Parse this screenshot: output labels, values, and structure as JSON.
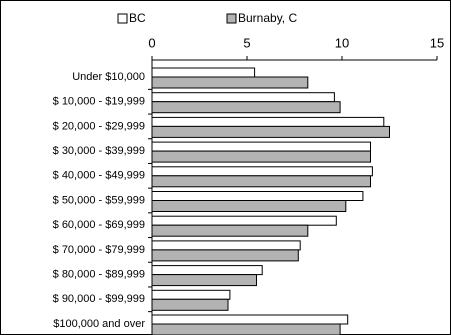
{
  "chart_data": {
    "type": "hbar",
    "categories": [
      "Under $10,000",
      "$ 10,000 - $19,999",
      "$ 20,000 - $29,999",
      "$ 30,000 - $39,999",
      "$ 40,000 - $49,999",
      "$ 50,000 - $59,999",
      "$ 60,000 - $69,999",
      "$ 70,000 - $79,999",
      "$ 80,000 - $89,999",
      "$ 90,000 - $99,999",
      "$100,000 and over"
    ],
    "series": [
      {
        "name": "BC",
        "color": "#ffffff",
        "values": [
          5.4,
          9.6,
          12.2,
          11.5,
          11.6,
          11.1,
          9.7,
          7.8,
          5.8,
          4.1,
          10.3
        ]
      },
      {
        "name": "Burnaby, C",
        "color": "#b3b3b3",
        "values": [
          8.2,
          9.9,
          12.5,
          11.5,
          11.5,
          10.2,
          8.2,
          7.7,
          5.5,
          4.0,
          9.9
        ]
      }
    ],
    "xlim": [
      0,
      15
    ],
    "xticks": [
      0,
      5,
      10,
      15
    ]
  }
}
